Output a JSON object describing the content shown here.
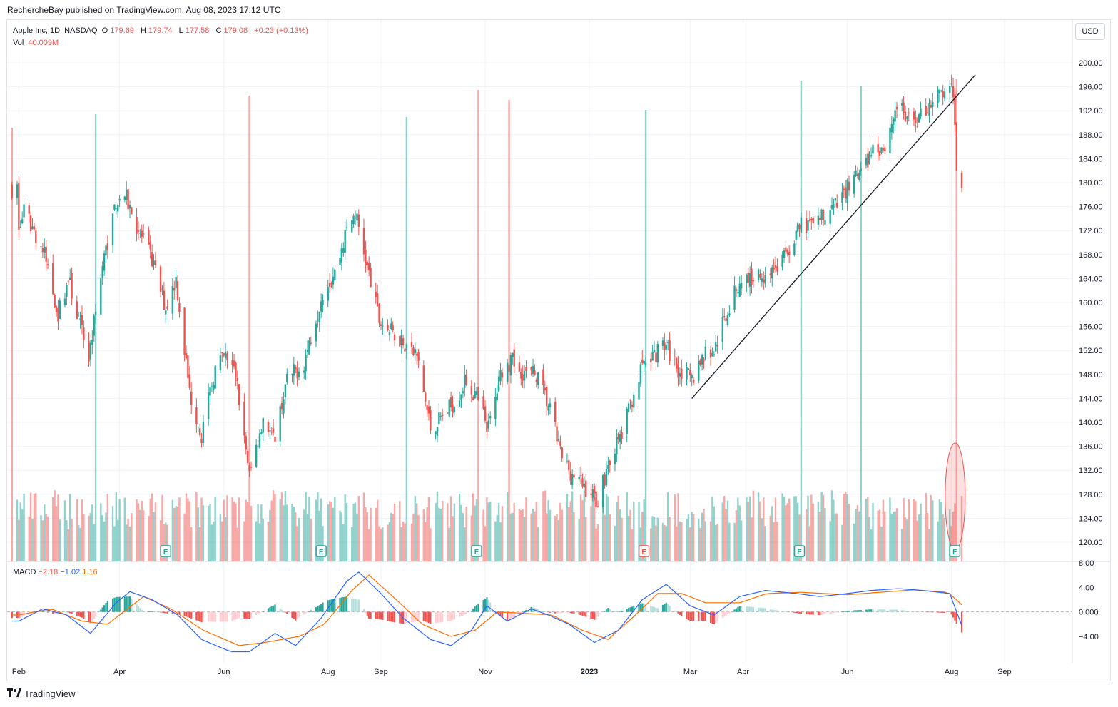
{
  "header": {
    "publisher_line": "RechercheBay published on TradingView.com, Aug 08, 2023 17:12 UTC"
  },
  "legend": {
    "symbol": "Apple Inc, 1D, NASDAQ",
    "open_label": "O",
    "open": "179.69",
    "high_label": "H",
    "high": "179.74",
    "low_label": "L",
    "low": "177.58",
    "close_label": "C",
    "close": "179.08",
    "change": "+0.23 (+0.13%)",
    "vol_label": "Vol",
    "vol": "40.009M"
  },
  "macd_legend": {
    "label": "MACD",
    "v1": "−2.18",
    "v2": "−1.02",
    "v3": "1.16"
  },
  "currency_button": "USD",
  "footer": {
    "brand": "TradingView",
    "logo_icon": "tradingview-logo-icon"
  },
  "colors": {
    "up": "#26a69a",
    "down": "#ef5350",
    "macd": "#2962ff",
    "signal": "#ff6d00",
    "grid": "#f0f3fa"
  },
  "chart_data": [
    {
      "type": "candlestick",
      "symbol": "AAPL",
      "y_ticks": [
        "200.00",
        "196.00",
        "192.00",
        "188.00",
        "184.00",
        "180.00",
        "176.00",
        "172.00",
        "168.00",
        "164.00",
        "160.00",
        "156.00",
        "152.00",
        "148.00",
        "144.00",
        "140.00",
        "136.00",
        "132.00",
        "128.00",
        "124.00",
        "120.00"
      ],
      "x_ticks": [
        "Feb",
        "Apr",
        "Jun",
        "Aug",
        "Sep",
        "Nov",
        "2023",
        "Mar",
        "Apr",
        "Jun",
        "Aug",
        "Sep"
      ],
      "ylim": [
        118,
        202
      ],
      "path": [
        [
          "2022-02-01",
          172
        ],
        [
          "2022-02-04",
          175
        ],
        [
          "2022-02-10",
          172
        ],
        [
          "2022-02-16",
          168
        ],
        [
          "2022-02-24",
          158
        ],
        [
          "2022-03-02",
          164
        ],
        [
          "2022-03-08",
          157
        ],
        [
          "2022-03-14",
          151
        ],
        [
          "2022-03-22",
          166
        ],
        [
          "2022-03-30",
          177
        ],
        [
          "2022-04-04",
          178
        ],
        [
          "2022-04-12",
          172
        ],
        [
          "2022-04-20",
          167
        ],
        [
          "2022-04-28",
          159
        ],
        [
          "2022-05-04",
          164
        ],
        [
          "2022-05-12",
          145
        ],
        [
          "2022-05-19",
          138
        ],
        [
          "2022-05-27",
          149
        ],
        [
          "2022-06-02",
          151
        ],
        [
          "2022-06-08",
          148
        ],
        [
          "2022-06-16",
          131
        ],
        [
          "2022-06-24",
          141
        ],
        [
          "2022-06-30",
          137
        ],
        [
          "2022-07-08",
          147
        ],
        [
          "2022-07-18",
          150
        ],
        [
          "2022-07-29",
          162
        ],
        [
          "2022-08-05",
          165
        ],
        [
          "2022-08-12",
          172
        ],
        [
          "2022-08-17",
          175
        ],
        [
          "2022-08-23",
          167
        ],
        [
          "2022-08-31",
          157
        ],
        [
          "2022-09-07",
          155
        ],
        [
          "2022-09-13",
          154
        ],
        [
          "2022-09-22",
          151
        ],
        [
          "2022-09-30",
          139
        ],
        [
          "2022-10-07",
          141
        ],
        [
          "2022-10-13",
          143
        ],
        [
          "2022-10-21",
          147
        ],
        [
          "2022-10-27",
          144
        ],
        [
          "2022-11-03",
          139
        ],
        [
          "2022-11-11",
          149
        ],
        [
          "2022-11-17",
          150
        ],
        [
          "2022-11-25",
          148
        ],
        [
          "2022-12-01",
          148
        ],
        [
          "2022-12-09",
          142
        ],
        [
          "2022-12-16",
          134
        ],
        [
          "2022-12-23",
          131
        ],
        [
          "2022-12-30",
          129
        ],
        [
          "2023-01-06",
          127
        ],
        [
          "2023-01-13",
          134
        ],
        [
          "2023-01-20",
          138
        ],
        [
          "2023-01-27",
          145
        ],
        [
          "2023-02-02",
          150
        ],
        [
          "2023-02-07",
          151
        ],
        [
          "2023-02-14",
          153
        ],
        [
          "2023-02-22",
          149
        ],
        [
          "2023-03-02",
          147
        ],
        [
          "2023-03-08",
          151
        ],
        [
          "2023-03-15",
          152
        ],
        [
          "2023-03-22",
          158
        ],
        [
          "2023-03-31",
          164
        ],
        [
          "2023-04-06",
          164
        ],
        [
          "2023-04-14",
          165
        ],
        [
          "2023-04-21",
          166
        ],
        [
          "2023-04-28",
          169
        ],
        [
          "2023-05-05",
          173
        ],
        [
          "2023-05-12",
          172
        ],
        [
          "2023-05-19",
          175
        ],
        [
          "2023-05-26",
          176
        ],
        [
          "2023-06-02",
          180
        ],
        [
          "2023-06-09",
          181
        ],
        [
          "2023-06-16",
          186
        ],
        [
          "2023-06-23",
          186
        ],
        [
          "2023-06-30",
          193
        ],
        [
          "2023-07-07",
          190
        ],
        [
          "2023-07-14",
          191
        ],
        [
          "2023-07-21",
          194
        ],
        [
          "2023-07-28",
          195
        ],
        [
          "2023-08-01",
          195
        ],
        [
          "2023-08-03",
          191
        ],
        [
          "2023-08-04",
          181
        ],
        [
          "2023-08-07",
          179
        ]
      ],
      "trendline": [
        [
          "2023-03-02",
          144
        ],
        [
          "2023-08-15",
          198
        ]
      ],
      "earnings_markers": [
        {
          "date": "2022-04-28",
          "sign": "E",
          "surprise": "positive"
        },
        {
          "date": "2022-07-28",
          "sign": "E",
          "surprise": "positive"
        },
        {
          "date": "2022-10-27",
          "sign": "E",
          "surprise": "positive"
        },
        {
          "date": "2023-02-02",
          "sign": "E",
          "surprise": "negative"
        },
        {
          "date": "2023-05-04",
          "sign": "E",
          "surprise": "positive"
        },
        {
          "date": "2023-08-03",
          "sign": "E",
          "surprise": "positive"
        }
      ],
      "highlight_ellipse": {
        "date": "2023-08-04",
        "note": "volume spike circled"
      }
    },
    {
      "type": "bar",
      "name": "Vol",
      "last_value": "40.009M",
      "spikes": [
        [
          "2022-01-28",
          179
        ],
        [
          "2022-03-18",
          160
        ],
        [
          "2022-06-16",
          134
        ],
        [
          "2022-09-16",
          164
        ],
        [
          "2022-10-28",
          126
        ],
        [
          "2022-11-15",
          140
        ],
        [
          "2023-02-03",
          154
        ],
        [
          "2023-05-05",
          113
        ],
        [
          "2023-06-09",
          120
        ],
        [
          "2023-08-04",
          111
        ]
      ]
    },
    {
      "type": "line",
      "name": "MACD",
      "y_ticks": [
        "8.00",
        "4.00",
        "0.000",
        "−4.00"
      ],
      "ylim": [
        -8,
        8
      ],
      "macd_path": [
        [
          "2022-02-01",
          -1.5
        ],
        [
          "2022-02-15",
          0.5
        ],
        [
          "2022-03-01",
          -0.5
        ],
        [
          "2022-03-15",
          -3.5
        ],
        [
          "2022-03-30",
          1.5
        ],
        [
          "2022-04-07",
          3.3
        ],
        [
          "2022-04-20",
          2.0
        ],
        [
          "2022-05-05",
          -0.5
        ],
        [
          "2022-05-19",
          -4.5
        ],
        [
          "2022-06-05",
          -6.5
        ],
        [
          "2022-06-16",
          -6.5
        ],
        [
          "2022-07-01",
          -3.5
        ],
        [
          "2022-07-13",
          -5.5
        ],
        [
          "2022-07-28",
          -1.0
        ],
        [
          "2022-08-12",
          5.0
        ],
        [
          "2022-08-19",
          6.5
        ],
        [
          "2022-09-01",
          3.0
        ],
        [
          "2022-09-14",
          -1.0
        ],
        [
          "2022-09-30",
          -4.5
        ],
        [
          "2022-10-12",
          -5.5
        ],
        [
          "2022-10-24",
          -3.0
        ],
        [
          "2022-11-02",
          1.0
        ],
        [
          "2022-11-14",
          -1.5
        ],
        [
          "2022-11-28",
          0.5
        ],
        [
          "2022-12-08",
          -0.5
        ],
        [
          "2022-12-20",
          -2.0
        ],
        [
          "2023-01-04",
          -5.0
        ],
        [
          "2023-01-18",
          -3.0
        ],
        [
          "2023-02-01",
          2.0
        ],
        [
          "2023-02-15",
          4.5
        ],
        [
          "2023-03-01",
          1.0
        ],
        [
          "2023-03-15",
          -0.5
        ],
        [
          "2023-03-30",
          2.5
        ],
        [
          "2023-04-14",
          3.5
        ],
        [
          "2023-05-02",
          3.0
        ],
        [
          "2023-05-16",
          2.5
        ],
        [
          "2023-06-01",
          3.0
        ],
        [
          "2023-06-15",
          3.5
        ],
        [
          "2023-07-01",
          3.8
        ],
        [
          "2023-07-15",
          3.5
        ],
        [
          "2023-07-31",
          3.0
        ],
        [
          "2023-08-07",
          -2.2
        ]
      ],
      "signal_path": [
        [
          "2022-02-01",
          -0.5
        ],
        [
          "2022-02-20",
          0.5
        ],
        [
          "2022-03-10",
          -1.5
        ],
        [
          "2022-03-25",
          -2.0
        ],
        [
          "2022-04-15",
          2.5
        ],
        [
          "2022-05-01",
          0.5
        ],
        [
          "2022-05-20",
          -3.0
        ],
        [
          "2022-06-10",
          -5.5
        ],
        [
          "2022-06-25",
          -5.0
        ],
        [
          "2022-07-15",
          -4.0
        ],
        [
          "2022-07-30",
          -2.0
        ],
        [
          "2022-08-15",
          3.5
        ],
        [
          "2022-08-25",
          6.0
        ],
        [
          "2022-09-10",
          2.0
        ],
        [
          "2022-09-25",
          -2.0
        ],
        [
          "2022-10-12",
          -4.0
        ],
        [
          "2022-10-26",
          -3.0
        ],
        [
          "2022-11-08",
          0.0
        ],
        [
          "2022-11-22",
          -0.2
        ],
        [
          "2022-12-10",
          -0.5
        ],
        [
          "2022-12-28",
          -3.0
        ],
        [
          "2023-01-12",
          -4.5
        ],
        [
          "2023-01-28",
          -0.5
        ],
        [
          "2023-02-10",
          3.0
        ],
        [
          "2023-02-24",
          3.0
        ],
        [
          "2023-03-10",
          1.5
        ],
        [
          "2023-03-30",
          1.5
        ],
        [
          "2023-04-15",
          3.0
        ],
        [
          "2023-05-05",
          3.2
        ],
        [
          "2023-06-01",
          2.8
        ],
        [
          "2023-06-20",
          3.2
        ],
        [
          "2023-07-10",
          3.6
        ],
        [
          "2023-07-30",
          3.2
        ],
        [
          "2023-08-07",
          1.16
        ]
      ]
    }
  ]
}
